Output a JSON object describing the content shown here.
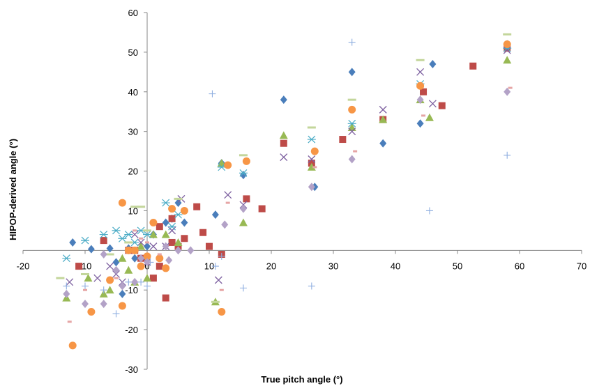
{
  "chart_data": {
    "type": "scatter",
    "title": "",
    "xlabel": "True pitch angle (°)",
    "ylabel": "HIPOP-derived angle (°)",
    "xlim": [
      -20,
      70
    ],
    "ylim": [
      -30,
      60
    ],
    "xticks": [
      -20,
      -10,
      0,
      10,
      20,
      30,
      40,
      50,
      60,
      70
    ],
    "yticks": [
      -30,
      -20,
      -10,
      0,
      10,
      20,
      30,
      40,
      50,
      60
    ],
    "xtick_labels": [
      "-20",
      "-10",
      "0",
      "10",
      "20",
      "30",
      "40",
      "50",
      "60",
      "70"
    ],
    "ytick_labels": [
      "-30",
      "-20",
      "-10",
      "0",
      "10",
      "20",
      "30",
      "40",
      "50",
      "60"
    ],
    "grid": false,
    "legend": "none",
    "series": [
      {
        "marker": "diamond",
        "color": "#4a7ebb",
        "points": [
          [
            -12,
            2
          ],
          [
            -9,
            0.3
          ],
          [
            -6,
            0.5
          ],
          [
            -5,
            -3
          ],
          [
            -4,
            -11
          ],
          [
            -3,
            0.5
          ],
          [
            -2,
            -2
          ],
          [
            0,
            1
          ],
          [
            1,
            4
          ],
          [
            3,
            7
          ],
          [
            4,
            8
          ],
          [
            5,
            12
          ],
          [
            6,
            7
          ],
          [
            11,
            9
          ],
          [
            12,
            22
          ],
          [
            15.5,
            19
          ],
          [
            22,
            38
          ],
          [
            27,
            16
          ],
          [
            33,
            45
          ],
          [
            38,
            27
          ],
          [
            44,
            32
          ],
          [
            46,
            47
          ],
          [
            58,
            52
          ]
        ]
      },
      {
        "marker": "square",
        "color": "#be4b48",
        "points": [
          [
            -11,
            -4
          ],
          [
            -7,
            2.5
          ],
          [
            -3,
            0
          ],
          [
            -2,
            0
          ],
          [
            -1,
            -2
          ],
          [
            1,
            -7
          ],
          [
            2,
            -4
          ],
          [
            2,
            6
          ],
          [
            3,
            -12
          ],
          [
            4,
            8
          ],
          [
            4,
            2
          ],
          [
            5,
            1
          ],
          [
            6,
            3
          ],
          [
            8,
            11
          ],
          [
            9,
            4.5
          ],
          [
            10,
            1
          ],
          [
            12,
            -1
          ],
          [
            16,
            13
          ],
          [
            18.5,
            10.5
          ],
          [
            22,
            27
          ],
          [
            26.5,
            22
          ],
          [
            31.5,
            28
          ],
          [
            38,
            33
          ],
          [
            44.5,
            40
          ],
          [
            47.5,
            36.5
          ],
          [
            52.5,
            46.5
          ],
          [
            58,
            51
          ]
        ]
      },
      {
        "marker": "triangle",
        "color": "#98b954",
        "points": [
          [
            -13,
            -12
          ],
          [
            -9.5,
            -7
          ],
          [
            -7,
            -11
          ],
          [
            -6,
            -10
          ],
          [
            -4,
            -2
          ],
          [
            -3,
            -5
          ],
          [
            -2,
            -8
          ],
          [
            -1,
            1
          ],
          [
            0,
            -7
          ],
          [
            1,
            4
          ],
          [
            3,
            4
          ],
          [
            5,
            2
          ],
          [
            11,
            -13
          ],
          [
            12,
            22
          ],
          [
            15.5,
            7
          ],
          [
            22,
            29
          ],
          [
            26.5,
            21
          ],
          [
            33,
            31
          ],
          [
            38,
            33
          ],
          [
            44,
            38
          ],
          [
            45.5,
            33.5
          ],
          [
            58,
            48
          ]
        ]
      },
      {
        "marker": "x",
        "color": "#7d60a0",
        "points": [
          [
            -12.5,
            -8
          ],
          [
            -8,
            -7
          ],
          [
            -6,
            -4
          ],
          [
            -5,
            -6
          ],
          [
            -4,
            -8
          ],
          [
            -2,
            4
          ],
          [
            -1,
            2
          ],
          [
            0,
            -3
          ],
          [
            1,
            1
          ],
          [
            3,
            1
          ],
          [
            4,
            5
          ],
          [
            5.5,
            13
          ],
          [
            11.5,
            -7.5
          ],
          [
            13,
            14
          ],
          [
            15.5,
            11.5
          ],
          [
            22,
            23.5
          ],
          [
            26.5,
            23
          ],
          [
            33,
            30
          ],
          [
            38,
            35.5
          ],
          [
            44,
            45
          ],
          [
            46,
            37
          ],
          [
            58,
            50.5
          ]
        ]
      },
      {
        "marker": "asterisk",
        "color": "#4bacc6",
        "points": [
          [
            -13,
            -2
          ],
          [
            -10,
            2.5
          ],
          [
            -7,
            4
          ],
          [
            -5,
            5
          ],
          [
            -4,
            3
          ],
          [
            -3,
            4
          ],
          [
            -2,
            2
          ],
          [
            -1,
            5
          ],
          [
            0,
            4
          ],
          [
            3,
            12
          ],
          [
            4,
            6
          ],
          [
            5,
            9
          ],
          [
            12,
            21
          ],
          [
            15.5,
            19.5
          ],
          [
            26.5,
            28
          ],
          [
            33,
            32
          ],
          [
            44,
            42
          ],
          [
            58,
            51
          ]
        ]
      },
      {
        "marker": "circle",
        "color": "#f79646",
        "points": [
          [
            -12,
            -24
          ],
          [
            -9,
            -15.5
          ],
          [
            -6,
            -7.5
          ],
          [
            -4,
            -14
          ],
          [
            -4,
            12
          ],
          [
            -3,
            0
          ],
          [
            -2,
            0
          ],
          [
            -1,
            -4
          ],
          [
            0,
            -1.5
          ],
          [
            1,
            7
          ],
          [
            2,
            -2
          ],
          [
            3,
            -4.5
          ],
          [
            4,
            10.5
          ],
          [
            6,
            10
          ],
          [
            12,
            -15.5
          ],
          [
            13,
            21.5
          ],
          [
            16,
            22.5
          ],
          [
            27,
            25
          ],
          [
            33,
            35.5
          ],
          [
            44,
            41.5
          ],
          [
            58,
            52
          ]
        ]
      },
      {
        "marker": "plus",
        "color": "#8eaee0",
        "points": [
          [
            -13,
            -9
          ],
          [
            -10,
            -9
          ],
          [
            -7,
            -10
          ],
          [
            -5,
            -16
          ],
          [
            -4,
            -9
          ],
          [
            -3,
            -8
          ],
          [
            -2,
            -8
          ],
          [
            -1,
            -8
          ],
          [
            0,
            -9
          ],
          [
            0.5,
            -3
          ],
          [
            10.5,
            39.5
          ],
          [
            11,
            -4
          ],
          [
            12,
            -1.5
          ],
          [
            15.5,
            -9.5
          ],
          [
            26.5,
            -9
          ],
          [
            33,
            52.5
          ],
          [
            45.5,
            10
          ],
          [
            58,
            24
          ]
        ]
      },
      {
        "marker": "dash-long",
        "color": "#c3d69b",
        "points": [
          [
            -14,
            -7
          ],
          [
            -10,
            -6
          ],
          [
            -6,
            -1
          ],
          [
            -3,
            2
          ],
          [
            -2,
            11
          ],
          [
            -1,
            11
          ],
          [
            0,
            5
          ],
          [
            5,
            13
          ],
          [
            11,
            -13
          ],
          [
            15.5,
            24
          ],
          [
            26.5,
            31
          ],
          [
            33,
            38
          ],
          [
            44,
            48
          ],
          [
            58,
            54.5
          ]
        ]
      },
      {
        "marker": "dash-short",
        "color": "#e6a5a5",
        "points": [
          [
            -12.5,
            -18
          ],
          [
            -10,
            -10
          ],
          [
            -5,
            -7
          ],
          [
            -2,
            5
          ],
          [
            -1,
            3
          ],
          [
            0,
            2
          ],
          [
            2,
            -1
          ],
          [
            12,
            -10
          ],
          [
            13,
            12
          ],
          [
            27,
            21
          ],
          [
            33.5,
            25
          ],
          [
            44.5,
            34
          ],
          [
            58.5,
            41
          ]
        ]
      },
      {
        "marker": "diamond",
        "color": "#b3a2c7",
        "points": [
          [
            -13,
            -11
          ],
          [
            -10,
            -13.5
          ],
          [
            -7,
            -13.5
          ],
          [
            -7,
            -1
          ],
          [
            -5,
            -5
          ],
          [
            -4,
            -9
          ],
          [
            -2,
            -8
          ],
          [
            -1,
            -2
          ],
          [
            0,
            -3
          ],
          [
            3,
            1
          ],
          [
            3.5,
            -2.5
          ],
          [
            5,
            0
          ],
          [
            7,
            0
          ],
          [
            12.5,
            6.5
          ],
          [
            15.5,
            10.5
          ],
          [
            26.5,
            16
          ],
          [
            33,
            23
          ],
          [
            44,
            38
          ],
          [
            58,
            40
          ]
        ]
      }
    ]
  }
}
